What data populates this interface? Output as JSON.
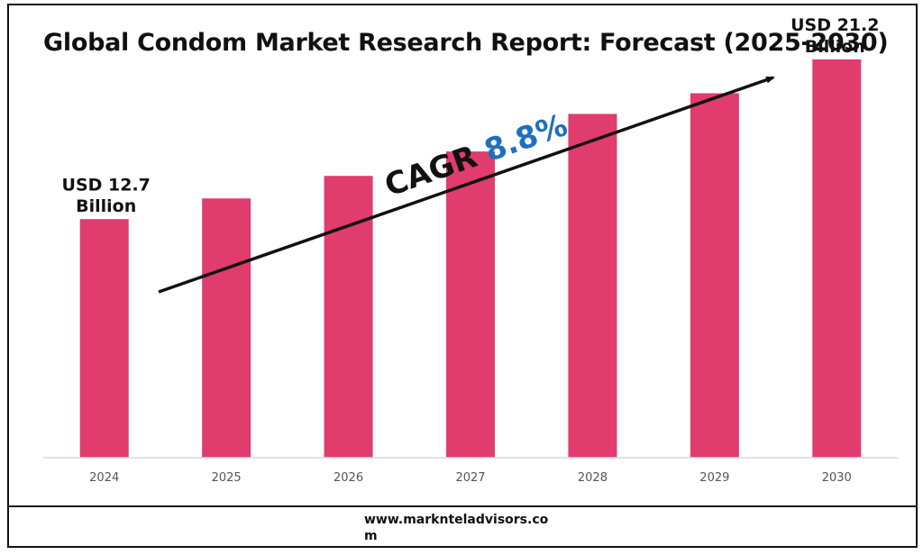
{
  "title": "Global Condom Market Research Report: Forecast (2025-2030)",
  "footer": {
    "website": "www.marknteladvisors.com"
  },
  "colors": {
    "bar": "#e03c6e",
    "text": "#111111",
    "cagr_value": "#1f6fc0",
    "axis": "#d9d9d9",
    "tick_label": "#555555"
  },
  "chart_data": {
    "type": "bar",
    "categories": [
      "2024",
      "2025",
      "2026",
      "2027",
      "2028",
      "2029",
      "2030"
    ],
    "values": [
      12.7,
      13.8,
      15.0,
      16.3,
      18.3,
      19.4,
      21.2
    ],
    "ylim": [
      0,
      23.5
    ],
    "grid": false,
    "legend": "none",
    "annotations": {
      "start_label": [
        "USD 12.7",
        "Billion"
      ],
      "end_label": [
        "USD 21.2",
        "Billion"
      ],
      "cagr_prefix": "CAGR",
      "cagr_value": "8.8%"
    }
  }
}
